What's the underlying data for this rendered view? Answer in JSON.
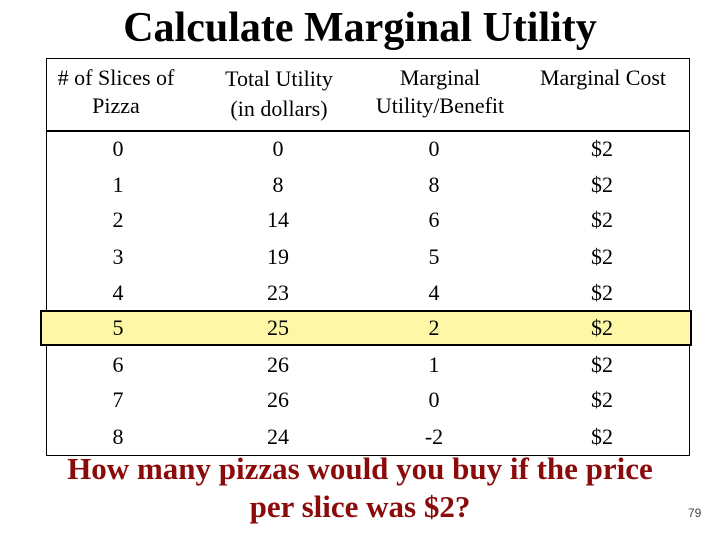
{
  "title": "Calculate Marginal Utility",
  "table": {
    "headers": [
      {
        "line1": "# of Slices of",
        "line2": "Pizza"
      },
      {
        "line1": "Total Utility",
        "line2": "(in dollars)"
      },
      {
        "line1": "Marginal",
        "line2": "Utility/Benefit"
      },
      {
        "line1": "Marginal Cost",
        "line2": ""
      }
    ],
    "rows": [
      [
        "0",
        "0",
        "0",
        "$2"
      ],
      [
        "1",
        "8",
        "8",
        "$2"
      ],
      [
        "2",
        "14",
        "6",
        "$2"
      ],
      [
        "3",
        "19",
        "5",
        "$2"
      ],
      [
        "4",
        "23",
        "4",
        "$2"
      ],
      [
        "5",
        "25",
        "2",
        "$2"
      ],
      [
        "6",
        "26",
        "1",
        "$2"
      ],
      [
        "7",
        "26",
        "0",
        "$2"
      ],
      [
        "8",
        "24",
        "-2",
        "$2"
      ]
    ],
    "highlighted_row": 5,
    "highlight_color": "#fdf7a6"
  },
  "question": {
    "line1": "How many pizzas would you buy if the price",
    "line2": "per slice was $2?",
    "color": "#8b0a0a"
  },
  "page_number": "79"
}
